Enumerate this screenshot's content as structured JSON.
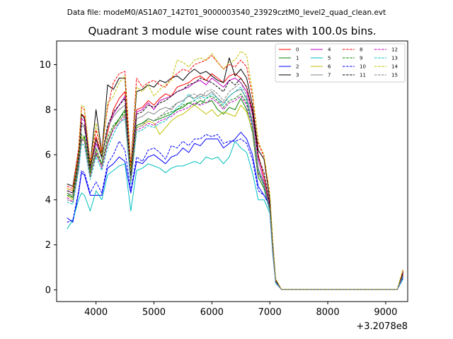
{
  "figure": {
    "supertitle": "Data file: modeM0/AS1A07_142T01_9000003540_23929cztM0_level2_quad_clean.evt",
    "title": "Quadrant 3 module wise count rates with 100.0s bins.",
    "offset_label": "+3.2078e8"
  },
  "chart_data": {
    "type": "line",
    "title": "Quadrant 3 module wise count rates with 100.0s bins.",
    "xlabel": "",
    "ylabel": "",
    "x_offset": "+3.2078e8",
    "xlim": [
      3320,
      9380
    ],
    "ylim": [
      -0.52,
      11.05
    ],
    "x_ticks": [
      4000,
      5000,
      6000,
      7000,
      8000,
      9000
    ],
    "y_ticks": [
      0,
      2,
      4,
      6,
      8,
      10
    ],
    "grid": false,
    "legend": "top-right",
    "x": [
      3500,
      3600,
      3700,
      3750,
      3800,
      3900,
      4000,
      4100,
      4200,
      4300,
      4400,
      4500,
      4600,
      4700,
      4800,
      4900,
      5000,
      5100,
      5200,
      5300,
      5400,
      5500,
      5600,
      5700,
      5800,
      5900,
      6000,
      6100,
      6200,
      6300,
      6400,
      6500,
      6600,
      6700,
      6800,
      6900,
      7000,
      7050,
      7100,
      7200,
      7300,
      7400,
      7500,
      7600,
      7700,
      7800,
      7900,
      8000,
      8100,
      8200,
      8300,
      8400,
      8500,
      8600,
      8700,
      8800,
      8900,
      9000,
      9100,
      9200,
      9300
    ],
    "series": [
      {
        "name": "0",
        "color": "#ff0000",
        "style": "solid",
        "values": [
          4.5,
          4.4,
          6.0,
          7.8,
          7.7,
          5.5,
          6.8,
          6.0,
          7.0,
          8.0,
          8.5,
          8.8,
          5.2,
          8.0,
          8.1,
          8.4,
          8.2,
          8.5,
          8.7,
          8.6,
          9.0,
          9.1,
          9.2,
          9.4,
          9.5,
          9.3,
          9.6,
          9.4,
          9.2,
          9.5,
          9.6,
          9.4,
          9.0,
          8.0,
          6.0,
          5.0,
          3.8,
          2.0,
          0.4,
          0.02,
          0.02,
          0.02,
          0.02,
          0.02,
          0.02,
          0.02,
          0.02,
          0.02,
          0.02,
          0.02,
          0.02,
          0.02,
          0.02,
          0.02,
          0.02,
          0.02,
          0.02,
          0.02,
          0.02,
          0.02,
          0.75
        ]
      },
      {
        "name": "1",
        "color": "#008000",
        "style": "solid",
        "values": [
          4.3,
          4.1,
          5.6,
          6.6,
          6.8,
          5.2,
          6.0,
          5.6,
          6.5,
          7.2,
          7.6,
          8.0,
          4.9,
          7.3,
          7.4,
          7.6,
          7.5,
          7.6,
          7.7,
          7.8,
          8.0,
          8.1,
          8.3,
          8.2,
          8.4,
          8.3,
          8.4,
          8.0,
          7.8,
          8.1,
          8.0,
          8.5,
          8.0,
          7.0,
          5.0,
          4.5,
          3.5,
          1.8,
          0.35,
          0.02,
          0.02,
          0.02,
          0.02,
          0.02,
          0.02,
          0.02,
          0.02,
          0.02,
          0.02,
          0.02,
          0.02,
          0.02,
          0.02,
          0.02,
          0.02,
          0.02,
          0.02,
          0.02,
          0.02,
          0.02,
          0.6
        ]
      },
      {
        "name": "2",
        "color": "#0000ff",
        "style": "solid",
        "values": [
          3.2,
          3.0,
          4.3,
          5.2,
          5.1,
          4.2,
          4.2,
          4.2,
          5.4,
          5.6,
          5.9,
          5.7,
          4.3,
          5.7,
          5.6,
          5.9,
          6.0,
          5.8,
          5.6,
          5.9,
          6.0,
          6.3,
          6.1,
          6.5,
          6.4,
          6.7,
          6.7,
          6.7,
          6.3,
          6.5,
          6.7,
          7.0,
          6.7,
          6.0,
          4.6,
          4.2,
          3.8,
          1.8,
          0.35,
          0.02,
          0.02,
          0.02,
          0.02,
          0.02,
          0.02,
          0.02,
          0.02,
          0.02,
          0.02,
          0.02,
          0.02,
          0.02,
          0.02,
          0.02,
          0.02,
          0.02,
          0.02,
          0.02,
          0.02,
          0.02,
          0.55
        ]
      },
      {
        "name": "3",
        "color": "#000000",
        "style": "solid",
        "values": [
          4.7,
          4.6,
          6.2,
          7.8,
          7.6,
          5.6,
          8.0,
          6.1,
          9.1,
          8.9,
          9.4,
          9.4,
          5.4,
          8.8,
          8.9,
          9.1,
          9.0,
          9.3,
          9.2,
          9.4,
          9.5,
          9.3,
          9.6,
          9.8,
          9.6,
          9.7,
          9.5,
          9.3,
          9.2,
          10.3,
          9.5,
          9.8,
          9.4,
          8.2,
          6.2,
          5.8,
          4.0,
          2.1,
          0.45,
          0.02,
          0.02,
          0.02,
          0.02,
          0.02,
          0.02,
          0.02,
          0.02,
          0.02,
          0.02,
          0.02,
          0.02,
          0.02,
          0.02,
          0.02,
          0.02,
          0.02,
          0.02,
          0.02,
          0.02,
          0.02,
          0.8
        ]
      },
      {
        "name": "4",
        "color": "#bf00bf",
        "style": "solid",
        "values": [
          4.4,
          4.3,
          5.9,
          7.6,
          7.5,
          5.4,
          6.5,
          5.9,
          7.2,
          7.8,
          8.2,
          8.6,
          5.1,
          7.9,
          8.0,
          8.3,
          8.0,
          8.4,
          8.5,
          8.6,
          8.8,
          8.9,
          9.0,
          9.2,
          9.3,
          9.1,
          9.4,
          9.2,
          9.0,
          9.3,
          9.4,
          9.2,
          8.8,
          7.8,
          5.8,
          4.8,
          3.7,
          1.9,
          0.4,
          0.02,
          0.02,
          0.02,
          0.02,
          0.02,
          0.02,
          0.02,
          0.02,
          0.02,
          0.02,
          0.02,
          0.02,
          0.02,
          0.02,
          0.02,
          0.02,
          0.02,
          0.02,
          0.02,
          0.02,
          0.02,
          0.7
        ]
      },
      {
        "name": "5",
        "color": "#00bfbf",
        "style": "solid",
        "values": [
          2.7,
          3.1,
          4.0,
          4.3,
          4.2,
          3.5,
          4.4,
          4.0,
          5.1,
          5.3,
          5.5,
          5.6,
          3.5,
          5.3,
          5.4,
          5.6,
          5.5,
          5.4,
          5.2,
          5.4,
          5.5,
          5.5,
          5.6,
          5.7,
          5.6,
          5.9,
          5.8,
          5.9,
          5.6,
          5.9,
          6.6,
          6.3,
          6.1,
          5.2,
          4.0,
          4.0,
          3.4,
          1.6,
          0.3,
          0.02,
          0.02,
          0.02,
          0.02,
          0.02,
          0.02,
          0.02,
          0.02,
          0.02,
          0.02,
          0.02,
          0.02,
          0.02,
          0.02,
          0.02,
          0.02,
          0.02,
          0.02,
          0.02,
          0.02,
          0.02,
          0.5
        ]
      },
      {
        "name": "6",
        "color": "#bfbf00",
        "style": "solid",
        "values": [
          4.2,
          4.0,
          5.5,
          6.8,
          6.7,
          5.1,
          6.2,
          5.5,
          6.6,
          7.2,
          7.5,
          7.8,
          4.8,
          7.2,
          7.3,
          7.5,
          7.4,
          6.9,
          7.2,
          7.5,
          7.7,
          7.8,
          8.0,
          8.2,
          8.0,
          7.8,
          8.0,
          7.7,
          7.9,
          7.8,
          7.7,
          8.2,
          7.9,
          7.1,
          5.2,
          4.6,
          3.6,
          1.7,
          0.35,
          0.02,
          0.02,
          0.02,
          0.02,
          0.02,
          0.02,
          0.02,
          0.02,
          0.02,
          0.02,
          0.02,
          0.02,
          0.02,
          0.02,
          0.02,
          0.02,
          0.02,
          0.02,
          0.02,
          0.02,
          0.02,
          0.6
        ]
      },
      {
        "name": "7",
        "color": "#808080",
        "style": "solid",
        "values": [
          4.3,
          4.2,
          5.7,
          7.3,
          7.2,
          5.3,
          6.7,
          5.8,
          7.2,
          7.7,
          8.0,
          8.2,
          5.0,
          7.6,
          7.7,
          7.9,
          7.8,
          8.0,
          8.1,
          8.0,
          8.3,
          8.4,
          8.6,
          8.5,
          8.7,
          8.6,
          8.8,
          8.5,
          8.3,
          8.6,
          8.8,
          8.9,
          8.5,
          7.4,
          5.4,
          4.7,
          3.6,
          1.8,
          0.38,
          0.02,
          0.02,
          0.02,
          0.02,
          0.02,
          0.02,
          0.02,
          0.02,
          0.02,
          0.02,
          0.02,
          0.02,
          0.02,
          0.02,
          0.02,
          0.02,
          0.02,
          0.02,
          0.02,
          0.02,
          0.02,
          0.65
        ]
      },
      {
        "name": "8",
        "color": "#ff0000",
        "style": "dashed",
        "values": [
          4.6,
          4.5,
          6.3,
          8.1,
          8.0,
          5.7,
          7.1,
          6.2,
          8.1,
          9.2,
          9.6,
          9.7,
          5.5,
          9.4,
          9.0,
          9.2,
          9.3,
          9.1,
          9.0,
          9.4,
          9.6,
          9.8,
          9.7,
          10.0,
          10.1,
          10.2,
          10.4,
          10.1,
          9.8,
          10.0,
          9.9,
          10.2,
          9.9,
          8.6,
          6.5,
          5.9,
          4.2,
          2.2,
          0.5,
          0.02,
          0.02,
          0.02,
          0.02,
          0.02,
          0.02,
          0.02,
          0.02,
          0.02,
          0.02,
          0.02,
          0.02,
          0.02,
          0.02,
          0.02,
          0.02,
          0.02,
          0.02,
          0.02,
          0.02,
          0.02,
          0.85
        ]
      },
      {
        "name": "9",
        "color": "#008000",
        "style": "dashed",
        "values": [
          4.2,
          4.1,
          5.6,
          6.9,
          6.8,
          5.2,
          6.3,
          5.6,
          6.8,
          7.3,
          7.6,
          7.9,
          4.9,
          7.3,
          7.4,
          7.6,
          7.5,
          7.7,
          7.8,
          7.9,
          8.0,
          8.2,
          8.3,
          8.4,
          8.2,
          8.5,
          8.6,
          8.4,
          8.1,
          8.4,
          8.5,
          8.7,
          8.3,
          7.3,
          5.3,
          4.7,
          3.6,
          1.8,
          0.36,
          0.02,
          0.02,
          0.02,
          0.02,
          0.02,
          0.02,
          0.02,
          0.02,
          0.02,
          0.02,
          0.02,
          0.02,
          0.02,
          0.02,
          0.02,
          0.02,
          0.02,
          0.02,
          0.02,
          0.02,
          0.02,
          0.62
        ]
      },
      {
        "name": "10",
        "color": "#0000ff",
        "style": "dashed",
        "values": [
          3.0,
          3.1,
          4.4,
          5.3,
          5.2,
          4.3,
          4.8,
          4.3,
          5.6,
          6.0,
          6.6,
          6.2,
          4.4,
          5.9,
          5.7,
          6.2,
          6.3,
          6.1,
          5.8,
          6.4,
          6.3,
          6.6,
          6.4,
          6.7,
          6.7,
          6.9,
          6.8,
          6.9,
          6.5,
          6.6,
          6.6,
          6.7,
          6.5,
          5.8,
          4.4,
          4.2,
          3.7,
          1.7,
          0.32,
          0.02,
          0.02,
          0.02,
          0.02,
          0.02,
          0.02,
          0.02,
          0.02,
          0.02,
          0.02,
          0.02,
          0.02,
          0.02,
          0.02,
          0.02,
          0.02,
          0.02,
          0.02,
          0.02,
          0.02,
          0.02,
          0.52
        ]
      },
      {
        "name": "11",
        "color": "#000000",
        "style": "dashed",
        "values": [
          4.4,
          4.3,
          5.9,
          7.4,
          7.3,
          5.4,
          6.7,
          5.9,
          7.3,
          7.9,
          8.2,
          8.5,
          5.1,
          7.8,
          7.9,
          8.2,
          8.1,
          8.3,
          8.4,
          8.6,
          8.8,
          8.9,
          9.1,
          9.2,
          9.4,
          9.3,
          9.2,
          9.0,
          8.8,
          9.3,
          9.1,
          9.4,
          9.0,
          7.9,
          5.9,
          5.2,
          3.8,
          2.0,
          0.42,
          0.02,
          0.02,
          0.02,
          0.02,
          0.02,
          0.02,
          0.02,
          0.02,
          0.02,
          0.02,
          0.02,
          0.02,
          0.02,
          0.02,
          0.02,
          0.02,
          0.02,
          0.02,
          0.02,
          0.02,
          0.02,
          0.72
        ]
      },
      {
        "name": "12",
        "color": "#bf00bf",
        "style": "dashed",
        "values": [
          4.1,
          3.9,
          5.4,
          6.7,
          6.6,
          5.0,
          6.1,
          5.4,
          6.5,
          7.1,
          7.4,
          7.7,
          4.8,
          7.1,
          7.2,
          7.4,
          7.3,
          7.5,
          7.6,
          7.7,
          7.9,
          8.0,
          8.1,
          8.3,
          8.2,
          8.3,
          8.5,
          8.3,
          8.0,
          8.3,
          8.4,
          8.6,
          8.2,
          7.2,
          5.2,
          4.6,
          3.5,
          1.7,
          0.34,
          0.02,
          0.02,
          0.02,
          0.02,
          0.02,
          0.02,
          0.02,
          0.02,
          0.02,
          0.02,
          0.02,
          0.02,
          0.02,
          0.02,
          0.02,
          0.02,
          0.02,
          0.02,
          0.02,
          0.02,
          0.02,
          0.6
        ]
      },
      {
        "name": "13",
        "color": "#00bfbf",
        "style": "dashed",
        "values": [
          3.9,
          3.8,
          5.3,
          6.5,
          6.4,
          4.9,
          5.9,
          5.3,
          6.3,
          6.9,
          7.4,
          7.6,
          4.7,
          7.0,
          7.1,
          7.3,
          7.2,
          7.4,
          7.5,
          7.8,
          8.1,
          8.3,
          8.7,
          8.4,
          8.6,
          8.5,
          8.7,
          8.5,
          8.2,
          8.6,
          8.8,
          9.0,
          8.4,
          7.3,
          5.3,
          4.6,
          3.5,
          1.7,
          0.33,
          0.02,
          0.02,
          0.02,
          0.02,
          0.02,
          0.02,
          0.02,
          0.02,
          0.02,
          0.02,
          0.02,
          0.02,
          0.02,
          0.02,
          0.02,
          0.02,
          0.02,
          0.02,
          0.02,
          0.02,
          0.02,
          0.58
        ]
      },
      {
        "name": "14",
        "color": "#bfbf00",
        "style": "dashed",
        "values": [
          4.5,
          4.4,
          6.1,
          8.2,
          8.1,
          5.6,
          7.4,
          6.0,
          8.3,
          8.6,
          9.2,
          9.5,
          5.3,
          9.0,
          8.8,
          9.1,
          8.6,
          8.9,
          9.1,
          9.3,
          10.2,
          10.1,
          9.9,
          10.2,
          10.3,
          10.2,
          10.5,
          10.1,
          9.8,
          10.1,
          10.2,
          10.6,
          10.4,
          8.8,
          6.6,
          6.0,
          4.3,
          2.2,
          0.5,
          0.02,
          0.02,
          0.02,
          0.02,
          0.02,
          0.02,
          0.02,
          0.02,
          0.02,
          0.02,
          0.02,
          0.02,
          0.02,
          0.02,
          0.02,
          0.02,
          0.02,
          0.02,
          0.02,
          0.02,
          0.02,
          0.95
        ]
      },
      {
        "name": "15",
        "color": "#808080",
        "style": "dashed",
        "values": [
          4.0,
          3.9,
          5.5,
          6.7,
          6.6,
          5.0,
          6.2,
          5.5,
          6.6,
          7.2,
          7.5,
          7.8,
          4.8,
          7.2,
          7.3,
          7.6,
          7.5,
          7.7,
          7.9,
          8.1,
          8.3,
          8.4,
          8.6,
          8.7,
          8.5,
          8.8,
          8.9,
          8.7,
          8.4,
          8.8,
          9.0,
          9.2,
          8.6,
          7.5,
          5.4,
          4.7,
          3.6,
          1.8,
          0.36,
          0.02,
          0.02,
          0.02,
          0.02,
          0.02,
          0.02,
          0.02,
          0.02,
          0.02,
          0.02,
          0.02,
          0.02,
          0.02,
          0.02,
          0.02,
          0.02,
          0.02,
          0.02,
          0.02,
          0.02,
          0.02,
          0.64
        ]
      }
    ]
  }
}
